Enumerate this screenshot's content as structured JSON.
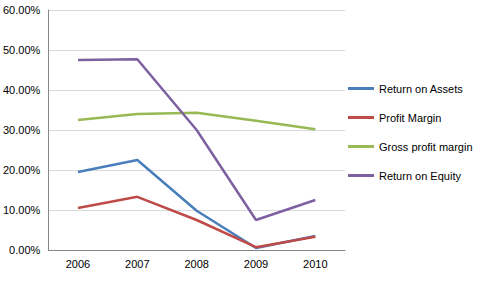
{
  "chart_data": {
    "type": "line",
    "categories": [
      "2006",
      "2007",
      "2008",
      "2009",
      "2010"
    ],
    "series": [
      {
        "name": "Return on Assets",
        "color": "#4a7ebb",
        "values": [
          19.5,
          22.5,
          9.8,
          0.5,
          3.5
        ]
      },
      {
        "name": "Profit Margin",
        "color": "#be4b48",
        "values": [
          10.5,
          13.3,
          7.5,
          0.7,
          3.3
        ]
      },
      {
        "name": "Gross profit margin",
        "color": "#98b954",
        "values": [
          32.5,
          34.0,
          34.3,
          32.3,
          30.2
        ]
      },
      {
        "name": "Return on Equity",
        "color": "#7d60a0",
        "values": [
          47.5,
          47.7,
          30.0,
          7.5,
          12.5
        ]
      }
    ],
    "ylim": [
      0,
      60
    ],
    "yticks": [
      {
        "value": 0,
        "label": "0.00%"
      },
      {
        "value": 10,
        "label": "10.00%"
      },
      {
        "value": 20,
        "label": "20.00%"
      },
      {
        "value": 30,
        "label": "30.00%"
      },
      {
        "value": 40,
        "label": "40.00%"
      },
      {
        "value": 50,
        "label": "50.00%"
      },
      {
        "value": 60,
        "label": "60.00%"
      }
    ],
    "grid": true,
    "legend": "right"
  }
}
